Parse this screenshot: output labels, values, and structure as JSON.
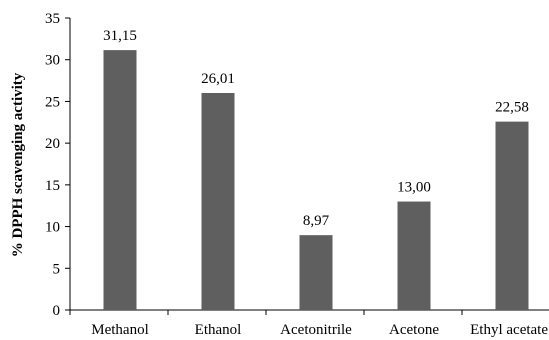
{
  "chart_data": {
    "type": "bar",
    "title": "",
    "xlabel": "",
    "ylabel": "% DPPH scavenging activity",
    "categories": [
      "Methanol",
      "Ethanol",
      "Acetonitrile",
      "Acetone",
      "Ethyl acetate"
    ],
    "values": [
      31.15,
      26.01,
      8.97,
      13.0,
      22.58
    ],
    "data_labels": [
      "31,15",
      "26,01",
      "8,97",
      "13,00",
      "22,58"
    ],
    "ylim": [
      0,
      35
    ],
    "yticks": [
      0,
      5,
      10,
      15,
      20,
      25,
      30,
      35
    ],
    "grid": false,
    "legend": "none",
    "colors": {
      "bar": "#5f5f5f",
      "axis": "#000000",
      "text": "#000000"
    }
  }
}
